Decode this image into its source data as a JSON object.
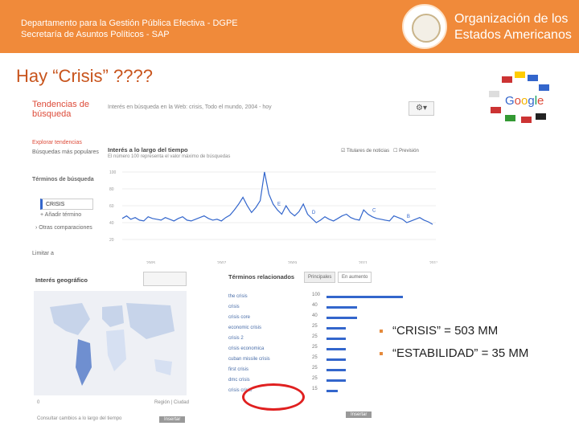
{
  "header": {
    "dept_line1": "Departamento para la Gestión Pública Efectiva - DGPE",
    "dept_line2": "Secretaría de Asuntos Políticos - SAP",
    "org_line1": "Organización de los",
    "org_line2": "Estados Americanos",
    "brand_color": "#f08a3a"
  },
  "slide_title": "Hay “Crisis” ????",
  "trends": {
    "title_line1": "Tendencias de",
    "title_line2": "búsqueda",
    "query": "Interés en búsqueda en la Web: crisis, Todo el mundo, 2004 - hoy",
    "side_explore": "Explorar tendencias",
    "side_popular": "Búsquedas más populares",
    "side_terms": "Términos de búsqueda",
    "term": "CRISIS",
    "add_term": "+ Añadir término",
    "other_compare": "› Otras comparaciones",
    "limit": "Limitar a",
    "chart_title": "Interés a lo largo del tiempo",
    "chart_sub": "El número 100 representa el valor máximo de búsquedas",
    "headlines": "Titulares de noticias",
    "forecast": "Previsión",
    "geo_title": "Interés geográfico",
    "related_title": "Términos relacionados",
    "tab_main": "Principales",
    "tab_rising": "En aumento",
    "region": "Región",
    "city": "Ciudad",
    "view_changes": "Consultar cambios a lo largo del tiempo",
    "insert1": "Insertar",
    "insert2": "Insertar"
  },
  "related": [
    {
      "label": "the crisis",
      "value": "100"
    },
    {
      "label": "crisis",
      "value": "40"
    },
    {
      "label": "crisis core",
      "value": "40"
    },
    {
      "label": "economic crisis",
      "value": "25"
    },
    {
      "label": "crisis 2",
      "value": "25"
    },
    {
      "label": "crisis economica",
      "value": "25"
    },
    {
      "label": "cuban missile crisis",
      "value": "25"
    },
    {
      "label": "first crisis",
      "value": "25"
    },
    {
      "label": "dmc crisis",
      "value": "25"
    },
    {
      "label": "crisis crisis",
      "value": "15"
    }
  ],
  "chart_data": {
    "type": "line",
    "x_ticks": [
      "2005",
      "2007",
      "2009",
      "2011",
      "2013"
    ],
    "y_ticks": [
      100,
      80,
      60,
      40,
      20
    ],
    "ylim": [
      0,
      100
    ],
    "series": [
      {
        "values": [
          45,
          48,
          44,
          46,
          43,
          42,
          47,
          45,
          44,
          43,
          46,
          44,
          42,
          45,
          47,
          43,
          42,
          44,
          46,
          48,
          45,
          43,
          44,
          42,
          46,
          49,
          55,
          62,
          70,
          60,
          52,
          58,
          66,
          100,
          74,
          62,
          55,
          50,
          60,
          52,
          48,
          53,
          62,
          50,
          45,
          40,
          43,
          47,
          44,
          42,
          45,
          48,
          50,
          46,
          44,
          43,
          55,
          50,
          47,
          45,
          44,
          43,
          42,
          48,
          46,
          44,
          40,
          42,
          44,
          46,
          43,
          41,
          38
        ]
      }
    ],
    "markers": [
      "F",
      "E",
      "D",
      "C",
      "B"
    ],
    "grid": true
  },
  "bullets": [
    "“CRISIS” =  503 MM",
    "“ESTABILIDAD” = 35 MM"
  ],
  "google_logo": "Google"
}
